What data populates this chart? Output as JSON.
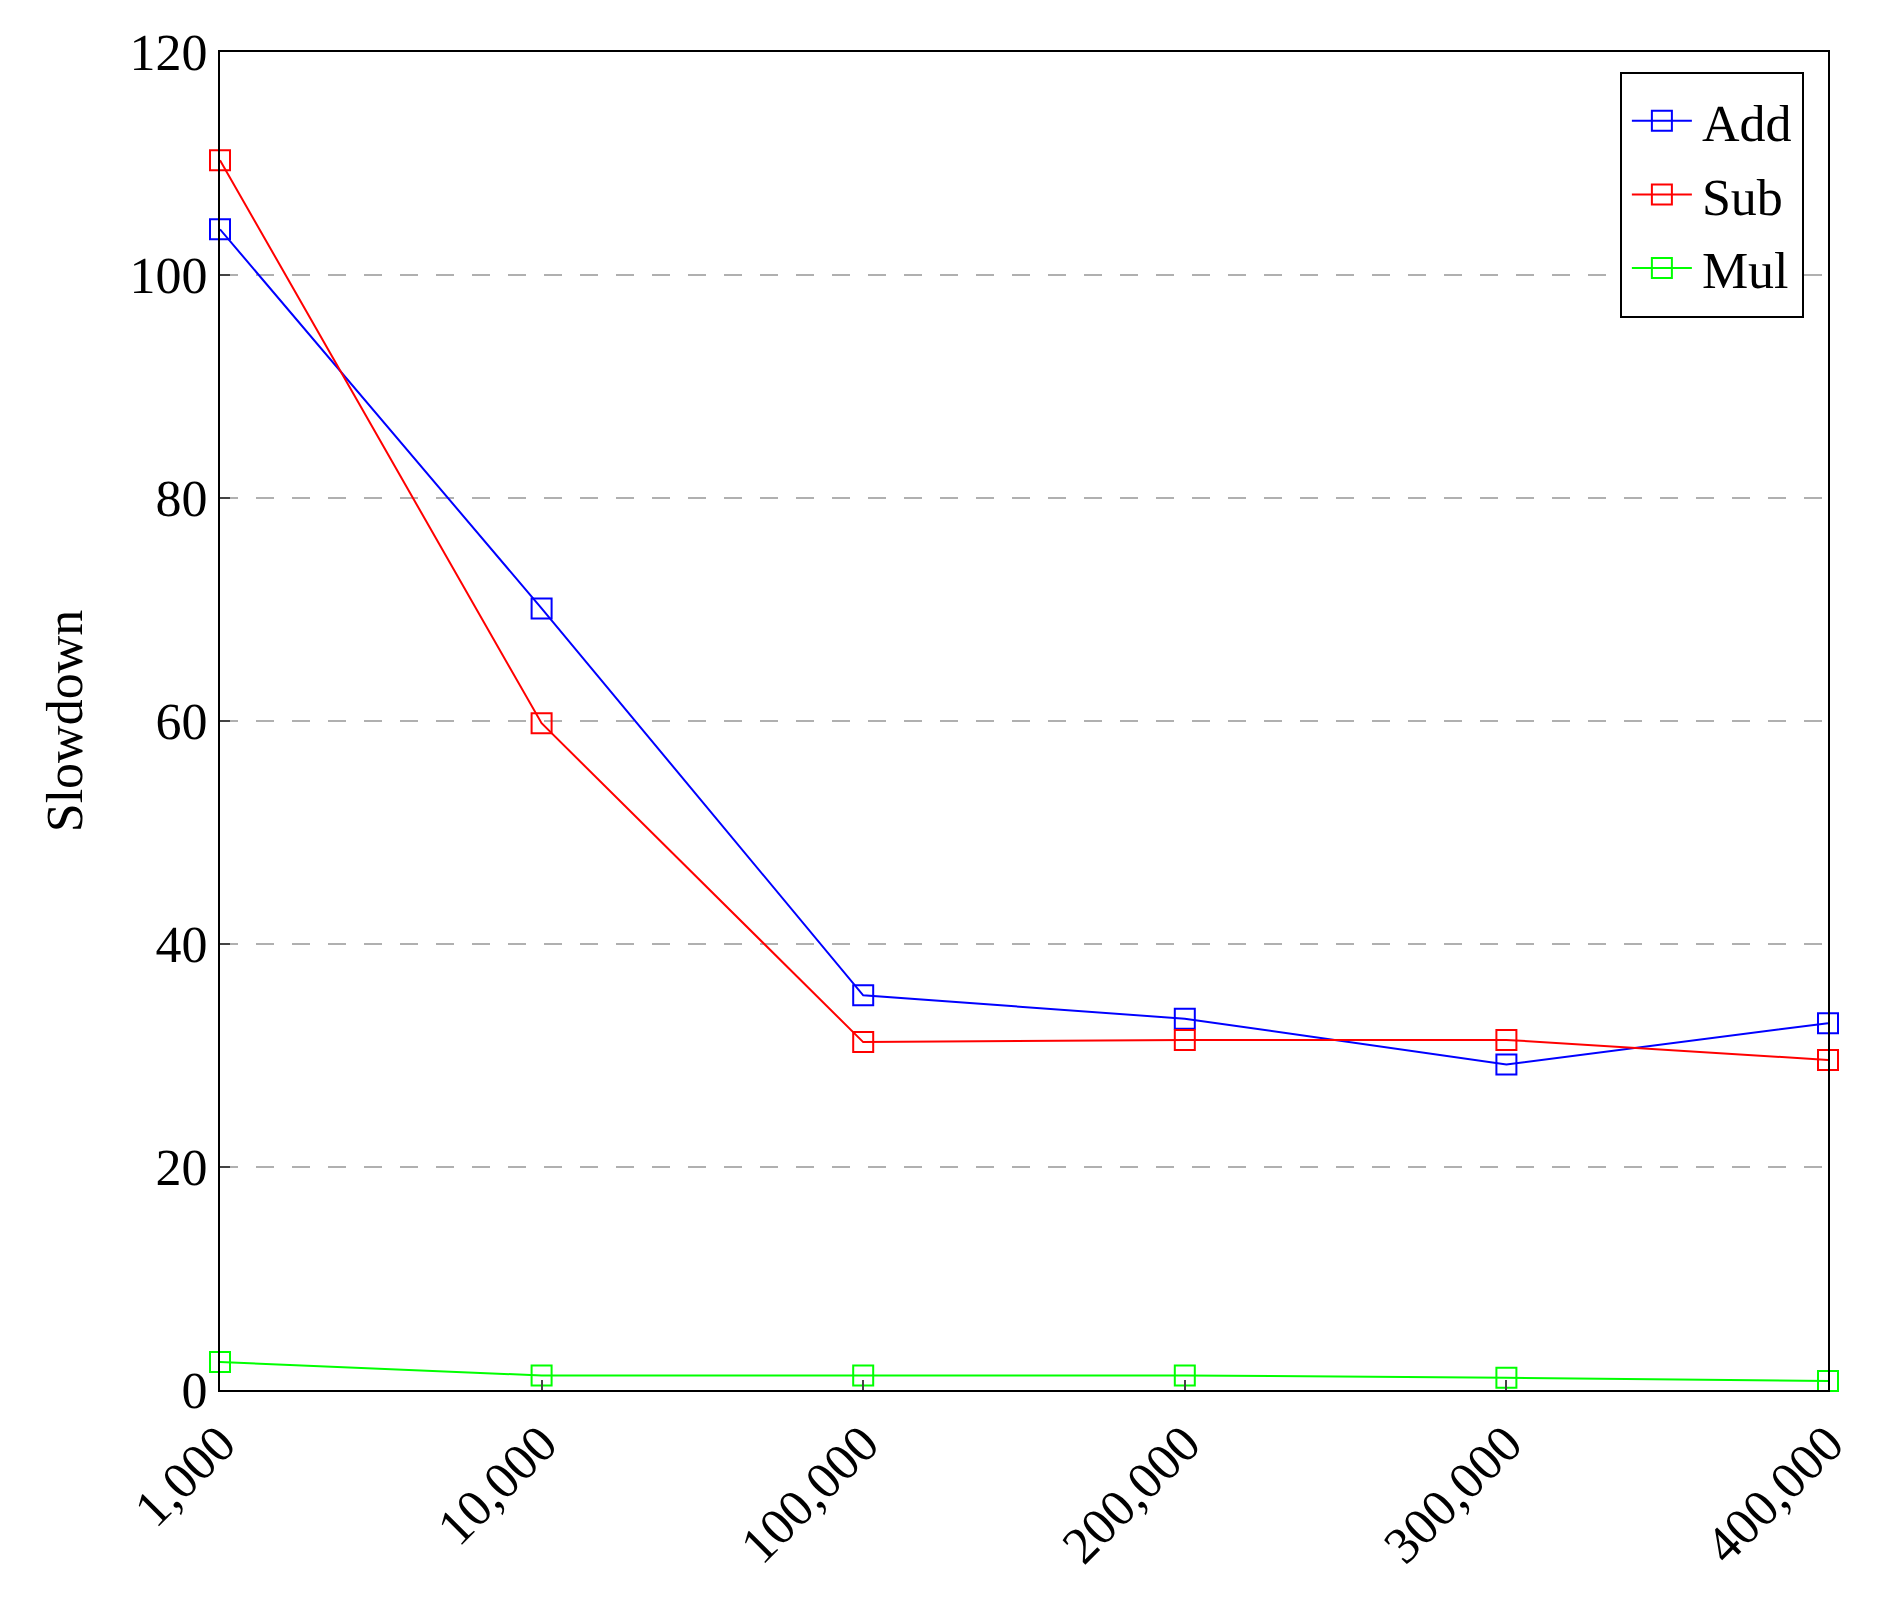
{
  "chart_data": {
    "type": "line",
    "ylabel": "Slowdown",
    "categories": [
      "1,000",
      "10,000",
      "100,000",
      "200,000",
      "300,000",
      "400,000"
    ],
    "series": [
      {
        "name": "Add",
        "color": "#0000ff",
        "values": [
          104.1,
          70.1,
          35.4,
          33.3,
          29.2,
          32.9
        ]
      },
      {
        "name": "Sub",
        "color": "#ff0000",
        "values": [
          110.3,
          59.8,
          31.2,
          31.4,
          31.4,
          29.6
        ]
      },
      {
        "name": "Mul",
        "color": "#00ff00",
        "values": [
          2.5,
          1.3,
          1.3,
          1.3,
          1.1,
          0.8
        ]
      }
    ],
    "ylim": [
      0,
      120
    ],
    "yticks": [
      0,
      20,
      40,
      60,
      80,
      100,
      120
    ],
    "grid": "y",
    "legend": "top right",
    "marker": "square",
    "line_style": "solid"
  }
}
